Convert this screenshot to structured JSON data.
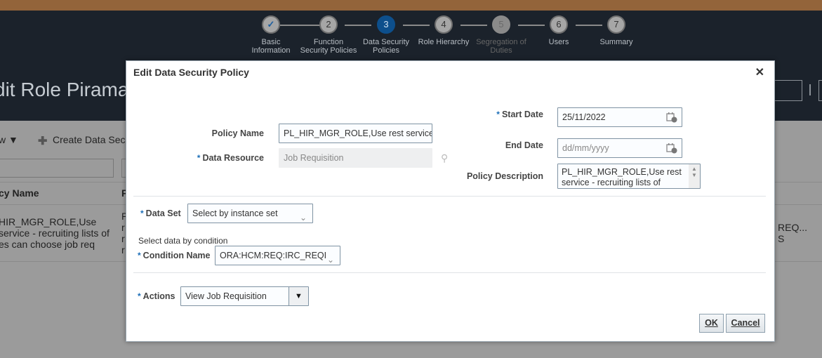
{
  "train": {
    "steps": [
      {
        "num": "✓",
        "label": "Basic Information",
        "state": "done"
      },
      {
        "num": "2",
        "label": "Function Security Policies",
        "state": "normal"
      },
      {
        "num": "3",
        "label": "Data Security Policies",
        "state": "active"
      },
      {
        "num": "4",
        "label": "Role Hierarchy",
        "state": "normal"
      },
      {
        "num": "5",
        "label": "Segregation of Duties",
        "state": "disabled"
      },
      {
        "num": "6",
        "label": "Users",
        "state": "normal"
      },
      {
        "num": "7",
        "label": "Summary",
        "state": "normal"
      }
    ]
  },
  "page": {
    "title": "dit Role Pirama",
    "view_menu": "w ▼",
    "create_button": "Create Data Secu",
    "col_policy_name": "cy Name",
    "col_second": "F",
    "row_policy_name": [
      "HIR_MGR_ROLE,Use",
      "service - recruiting lists of",
      "es can choose job req"
    ],
    "row_second": [
      "P",
      "r",
      "r",
      "r"
    ],
    "row_right": [
      "REQ...",
      "S"
    ]
  },
  "dialog": {
    "title": "Edit Data Security Policy",
    "close": "✕",
    "policy_name_label": "Policy Name",
    "policy_name_value": "PL_HIR_MGR_ROLE,Use rest service",
    "data_resource_label": "Data Resource",
    "data_resource_value": "Job Requisition",
    "start_date_label": "Start Date",
    "start_date_value": "25/11/2022",
    "end_date_label": "End Date",
    "end_date_placeholder": "dd/mm/yyyy",
    "policy_description_label": "Policy Description",
    "policy_description_value": "PL_HIR_MGR_ROLE,Use rest service - recruiting lists of values",
    "data_set_label": "Data Set",
    "data_set_value": "Select by instance set",
    "select_by_condition": "Select data by condition",
    "condition_name_label": "Condition Name",
    "condition_name_value": "ORA:HCM:REQ:IRC_REQI",
    "actions_label": "Actions",
    "actions_value": "View Job Requisition",
    "ok": "OK",
    "cancel": "Cancel",
    "required_marker": "*"
  },
  "colors": {
    "accent": "#0d4f8c",
    "header": "#1b222b",
    "topbar": "#93643a"
  }
}
